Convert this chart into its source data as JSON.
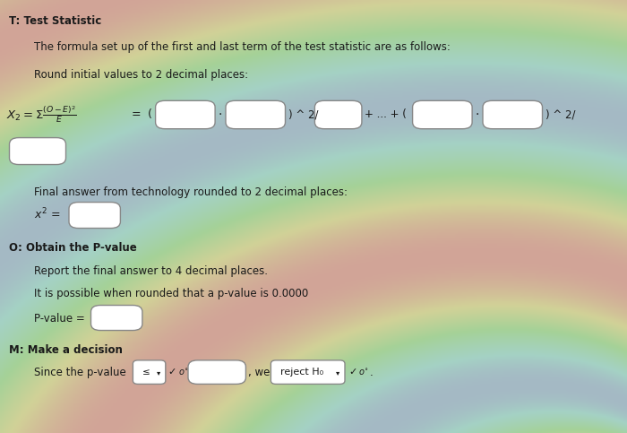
{
  "title": "T: Test Statistic",
  "background_color": "#c8c8b8",
  "text_color": "#1a1a1a",
  "line1": "The formula set up of the first and last term of the test statistic are as follows:",
  "line2": "Round initial values to 2 decimal places:",
  "section_O": "O: Obtain the P-value",
  "line_report": "Report the final answer to 4 decimal places.",
  "line_possible": "It is possible when rounded that a p-value is 0.0000",
  "pvalue_label": "P-value =",
  "section_M": "M: Make a decision",
  "decision_line": "Since the p-value",
  "decision_dropdown": "reject H₀",
  "final_label": "Final answer from technology rounded to 2 decimal places:",
  "chi_label": "x² =",
  "fig_width": 7.0,
  "fig_height": 4.83,
  "dpi": 100
}
